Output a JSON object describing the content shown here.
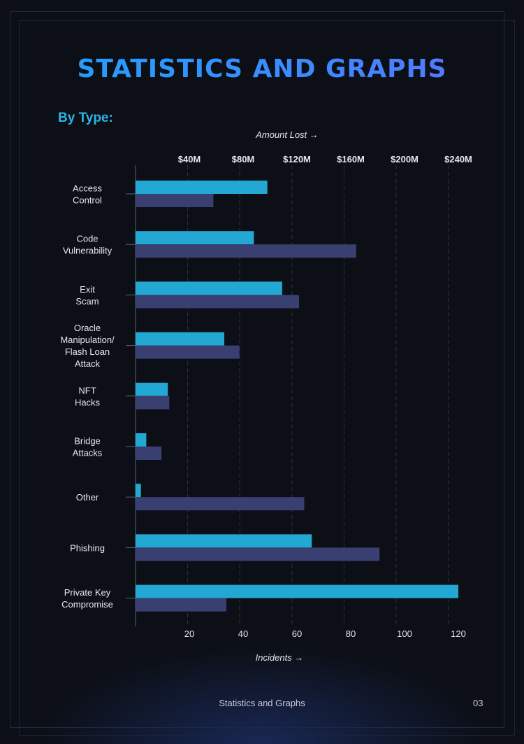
{
  "page": {
    "title": "STATISTICS AND GRAPHS",
    "section_label": "By Type:",
    "footer_text": "Statistics and Graphs",
    "page_number": "03"
  },
  "colors": {
    "amount_bar": "#23a8d4",
    "incidents_bar": "#3a3f72",
    "gridline": "#3a4256",
    "axis": "#5a6275",
    "text": "#e6e8ee"
  },
  "chart_data": {
    "type": "bar",
    "orientation": "horizontal",
    "categories": [
      [
        "Access",
        "Control"
      ],
      [
        "Code",
        "Vulnerability"
      ],
      [
        "Exit",
        "Scam"
      ],
      [
        "Oracle",
        "Manipulation/",
        "Flash Loan",
        "Attack"
      ],
      [
        "NFT",
        "Hacks"
      ],
      [
        "Bridge",
        "Attacks"
      ],
      [
        "Other"
      ],
      [
        "Phishing"
      ],
      [
        "Private Key",
        "Compromise"
      ]
    ],
    "top_axis": {
      "label": "Amount Lost →",
      "ticks": [
        "$40M",
        "$80M",
        "$120M",
        "$160M",
        "$200M",
        "$240M"
      ],
      "tick_values": [
        40,
        80,
        120,
        160,
        200,
        240
      ]
    },
    "bottom_axis": {
      "label": "Incidents →",
      "ticks": [
        "20",
        "40",
        "60",
        "80",
        "100",
        "120"
      ],
      "tick_values": [
        20,
        40,
        60,
        80,
        100,
        120
      ]
    },
    "series": [
      {
        "axis": "top",
        "unit": "$M",
        "values": [
          98,
          88,
          109,
          66,
          24,
          8,
          4,
          131,
          240
        ]
      },
      {
        "axis": "bottom",
        "values": [
          30,
          85,
          63,
          40,
          13,
          10,
          65,
          94,
          35
        ]
      }
    ],
    "xlim_top": [
      0,
      240
    ],
    "xlim_bottom": [
      5,
      120
    ],
    "grid": true
  }
}
